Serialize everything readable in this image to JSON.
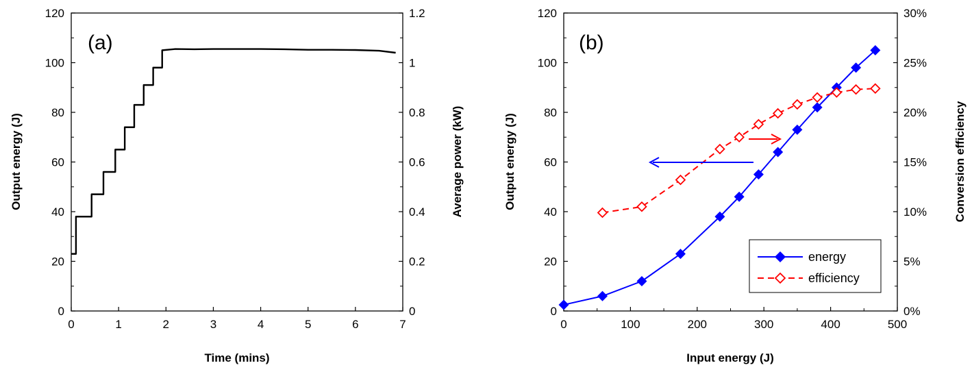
{
  "chart_data": [
    {
      "type": "line",
      "panel_label": "(a)",
      "xlabel": "Time (mins)",
      "ylabel": "Output energy (J)",
      "y2label": "Average power (kW)",
      "xlim": [
        0,
        7
      ],
      "ylim": [
        0,
        120
      ],
      "y2lim": [
        0,
        1.2
      ],
      "x_ticks": [
        "0",
        "1",
        "2",
        "3",
        "4",
        "5",
        "6",
        "7"
      ],
      "y_ticks": [
        "0",
        "20",
        "40",
        "60",
        "80",
        "100",
        "120"
      ],
      "y2_ticks": [
        "0",
        "0.2",
        "0.4",
        "0.6",
        "0.8",
        "1",
        "1.2"
      ],
      "grid": false,
      "series": [
        {
          "color": "#000000",
          "x": [
            0.0,
            0.1,
            0.1,
            0.43,
            0.43,
            0.68,
            0.68,
            0.93,
            0.93,
            1.13,
            1.13,
            1.33,
            1.33,
            1.53,
            1.53,
            1.73,
            1.73,
            1.92,
            1.92,
            2.2,
            2.6,
            3.0,
            3.5,
            4.0,
            4.5,
            5.0,
            5.5,
            6.0,
            6.5,
            6.85
          ],
          "y": [
            23,
            23,
            38,
            38,
            47,
            47,
            56,
            56,
            65,
            65,
            74,
            74,
            83,
            83,
            91,
            91,
            98,
            98,
            105,
            105.5,
            105.4,
            105.5,
            105.5,
            105.5,
            105.4,
            105.2,
            105.2,
            105.1,
            104.8,
            104.0
          ]
        }
      ]
    },
    {
      "type": "line",
      "panel_label": "(b)",
      "xlabel": "Input energy (J)",
      "ylabel": "Output energy (J)",
      "y2label": "Conversion efficiency",
      "xlim": [
        0,
        500
      ],
      "ylim": [
        0,
        120
      ],
      "y2lim": [
        0,
        30
      ],
      "x_ticks": [
        "0",
        "100",
        "200",
        "300",
        "400",
        "500"
      ],
      "y_ticks": [
        "0",
        "20",
        "40",
        "60",
        "80",
        "100",
        "120"
      ],
      "y2_ticks": [
        "0%",
        "5%",
        "10%",
        "15%",
        "20%",
        "25%",
        "30%"
      ],
      "grid": false,
      "legend_position": "bottom-right",
      "series": [
        {
          "name": "energy",
          "axis": "left",
          "color": "#0000ff",
          "line_style": "solid",
          "marker": "filled-diamond",
          "x": [
            0,
            58,
            117,
            175,
            234,
            263,
            292,
            321,
            350,
            380,
            409,
            438,
            467
          ],
          "y": [
            2.5,
            6,
            12,
            23,
            38,
            46,
            55,
            64,
            73,
            82,
            90,
            98,
            105
          ]
        },
        {
          "name": "efficiency",
          "axis": "right",
          "color": "#ff0000",
          "line_style": "dashed",
          "marker": "open-diamond",
          "x": [
            58,
            117,
            175,
            234,
            263,
            292,
            321,
            350,
            380,
            409,
            438,
            467
          ],
          "y": [
            9.9,
            10.5,
            13.2,
            16.3,
            17.5,
            18.8,
            19.9,
            20.8,
            21.5,
            22.0,
            22.3,
            22.4
          ]
        }
      ],
      "annotations": [
        {
          "kind": "arrow",
          "color": "#0000ff",
          "points_to": "left axis"
        },
        {
          "kind": "arrow",
          "color": "#ff0000",
          "points_to": "right axis"
        }
      ]
    }
  ]
}
